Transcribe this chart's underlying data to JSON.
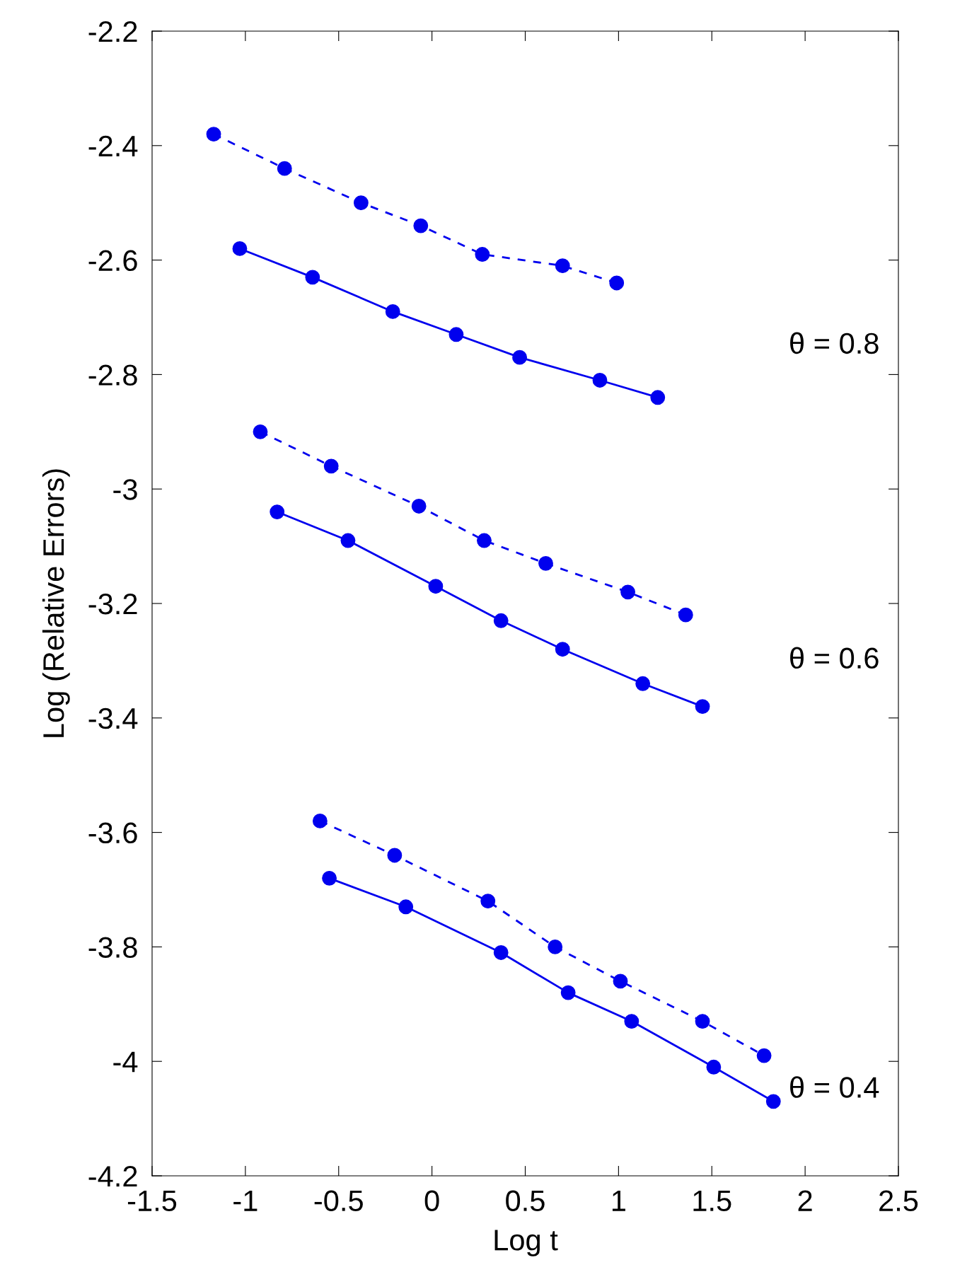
{
  "chart_data": {
    "type": "line",
    "xlabel": "Log t",
    "ylabel": "Log (Relative Errors)",
    "xlim": [
      -1.5,
      2.5
    ],
    "ylim": [
      -4.2,
      -2.2
    ],
    "xticks": [
      -1.5,
      -1,
      -0.5,
      0,
      0.5,
      1,
      1.5,
      2,
      2.5
    ],
    "yticks": [
      -4.2,
      -4,
      -3.8,
      -3.6,
      -3.4,
      -3.2,
      -3,
      -2.8,
      -2.6,
      -2.4,
      -2.2
    ],
    "grid": false,
    "legend": false,
    "marker": "circle",
    "series": [
      {
        "color": "#0000ee",
        "line_style": "dashed",
        "x": [
          -1.17,
          -0.79,
          -0.38,
          -0.06,
          0.27,
          0.7,
          0.99
        ],
        "values": [
          -2.38,
          -2.44,
          -2.5,
          -2.54,
          -2.59,
          -2.61,
          -2.64
        ]
      },
      {
        "color": "#0000ee",
        "line_style": "solid",
        "x": [
          -1.03,
          -0.64,
          -0.21,
          0.13,
          0.47,
          0.9,
          1.21
        ],
        "values": [
          -2.58,
          -2.63,
          -2.69,
          -2.73,
          -2.77,
          -2.81,
          -2.84
        ]
      },
      {
        "color": "#0000ee",
        "line_style": "dashed",
        "x": [
          -0.92,
          -0.54,
          -0.07,
          0.28,
          0.61,
          1.05,
          1.36
        ],
        "values": [
          -2.9,
          -2.96,
          -3.03,
          -3.09,
          -3.13,
          -3.18,
          -3.22
        ]
      },
      {
        "color": "#0000ee",
        "line_style": "solid",
        "x": [
          -0.83,
          -0.45,
          0.02,
          0.37,
          0.7,
          1.13,
          1.45
        ],
        "values": [
          -3.04,
          -3.09,
          -3.17,
          -3.23,
          -3.28,
          -3.34,
          -3.38
        ]
      },
      {
        "color": "#0000ee",
        "line_style": "dashed",
        "x": [
          -0.6,
          -0.2,
          0.3,
          0.66,
          1.01,
          1.45,
          1.78
        ],
        "values": [
          -3.58,
          -3.64,
          -3.72,
          -3.8,
          -3.86,
          -3.93,
          -3.99
        ]
      },
      {
        "color": "#0000ee",
        "line_style": "solid",
        "x": [
          -0.55,
          -0.14,
          0.37,
          0.73,
          1.07,
          1.51,
          1.83
        ],
        "values": [
          -3.68,
          -3.73,
          -3.81,
          -3.88,
          -3.93,
          -4.01,
          -4.07
        ]
      }
    ],
    "annotations": [
      "θ = 0.8",
      "θ = 0.6",
      "θ = 0.4"
    ]
  }
}
